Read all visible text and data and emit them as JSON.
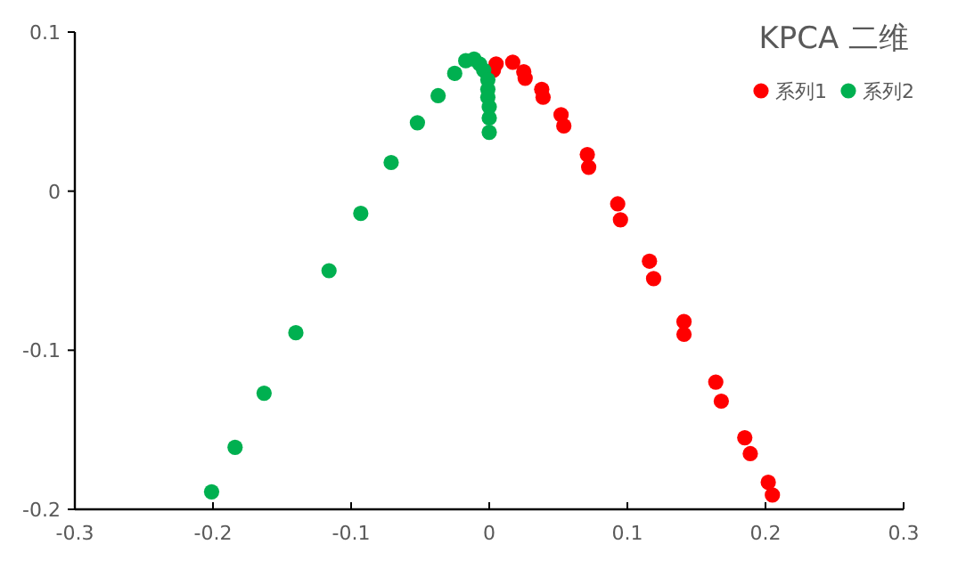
{
  "chart_data": {
    "type": "scatter",
    "title": "KPCA 二维",
    "xlim": [
      -0.3,
      0.3
    ],
    "xticks": [
      -0.3,
      -0.2,
      -0.1,
      0,
      0.1,
      0.2,
      0.3
    ],
    "ylim": [
      -0.2,
      0.1
    ],
    "yticks": [
      -0.2,
      -0.1,
      0,
      0.1
    ],
    "grid": false,
    "legend": "top right",
    "marker": "circle",
    "series": [
      {
        "name": "系列1",
        "color": "#ff0000",
        "x": [
          0.116,
          0.119,
          0.141,
          0.141,
          0.164,
          0.168,
          0.185,
          0.189,
          0.202,
          0.205,
          0.095,
          0.093,
          0.071,
          0.072,
          0.052,
          0.054,
          0.038,
          0.039,
          0.025,
          0.026,
          0.017,
          0.005,
          0.003
        ],
        "values": [
          -0.044,
          -0.055,
          -0.082,
          -0.09,
          -0.12,
          -0.132,
          -0.155,
          -0.165,
          -0.183,
          -0.191,
          -0.018,
          -0.008,
          0.023,
          0.015,
          0.048,
          0.041,
          0.064,
          0.059,
          0.075,
          0.071,
          0.081,
          0.08,
          0.076
        ]
      },
      {
        "name": "系列2",
        "color": "#00b050",
        "x": [
          -0.116,
          -0.14,
          -0.163,
          -0.184,
          -0.201,
          -0.093,
          -0.071,
          -0.052,
          -0.037,
          -0.025,
          -0.017,
          -0.011,
          -0.007,
          -0.004,
          -0.001,
          -0.001,
          -0.001,
          0.0,
          0.0,
          0.0
        ],
        "values": [
          -0.05,
          -0.089,
          -0.127,
          -0.161,
          -0.189,
          -0.014,
          0.018,
          0.043,
          0.06,
          0.074,
          0.082,
          0.083,
          0.08,
          0.076,
          0.07,
          0.064,
          0.059,
          0.053,
          0.046,
          0.037
        ]
      }
    ]
  }
}
